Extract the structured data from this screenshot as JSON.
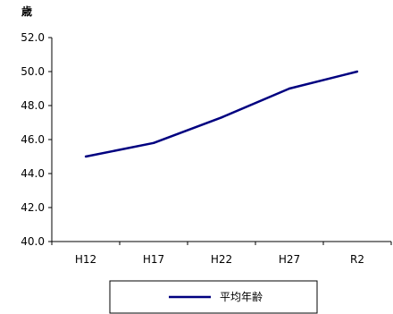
{
  "chart_data": {
    "type": "line",
    "y_unit_label": "歳",
    "categories": [
      "H12",
      "H17",
      "H22",
      "H27",
      "R2"
    ],
    "series": [
      {
        "name": "平均年齢",
        "values": [
          45.0,
          45.8,
          47.3,
          49.0,
          50.0
        ],
        "color": "#000080"
      }
    ],
    "yticks": [
      "40.0",
      "42.0",
      "44.0",
      "46.0",
      "48.0",
      "50.0",
      "52.0"
    ],
    "ylim": [
      40,
      52
    ],
    "grid": false,
    "legend_position": "bottom"
  }
}
